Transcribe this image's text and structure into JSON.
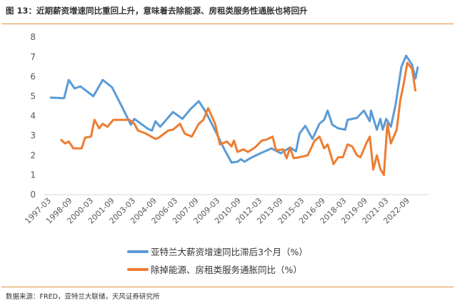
{
  "title": "图 13：近期薪资增速同比重回上升，意味着去除能源、房租类服务性通胀也将回升",
  "source": "数据来源：FRED，亚特兰大联储，天风证券研究所",
  "colors": {
    "accent": "#e8913f",
    "blue": "#5b9bd5",
    "orange": "#ed7d31"
  },
  "chart_data": {
    "type": "line",
    "title": "",
    "xlabel": "",
    "ylabel": "",
    "ylim": [
      0,
      8
    ],
    "yticks": [
      "0",
      "1",
      "2",
      "3",
      "4",
      "5",
      "6",
      "7",
      "8"
    ],
    "xticks": [
      "1997-03",
      "1998-09",
      "2000-03",
      "2001-09",
      "2003-03",
      "2004-09",
      "2006-03",
      "2007-09",
      "2009-03",
      "2010-09",
      "2012-03",
      "2013-09",
      "2015-03",
      "2016-09",
      "2018-03",
      "2019-09",
      "2021-03",
      "2022-09"
    ],
    "grid": false,
    "legend": "bottom",
    "series": [
      {
        "name": "亚特兰大薪资增速同比滞后3个月（%）",
        "color": "#5b9bd5",
        "points": [
          [
            "1997-03",
            4.93
          ],
          [
            "1998-03",
            4.9
          ],
          [
            "1998-07",
            5.83
          ],
          [
            "1998-12",
            5.4
          ],
          [
            "1999-05",
            5.5
          ],
          [
            "2000-04",
            5.0
          ],
          [
            "2000-12",
            5.83
          ],
          [
            "2001-08",
            5.45
          ],
          [
            "2002-05",
            4.4
          ],
          [
            "2002-12",
            3.55
          ],
          [
            "2003-03",
            3.85
          ],
          [
            "2004-02",
            3.37
          ],
          [
            "2004-06",
            3.25
          ],
          [
            "2004-09",
            3.73
          ],
          [
            "2005-01",
            3.45
          ],
          [
            "2005-12",
            4.2
          ],
          [
            "2006-08",
            3.85
          ],
          [
            "2007-03",
            4.35
          ],
          [
            "2007-10",
            4.75
          ],
          [
            "2008-04",
            4.2
          ],
          [
            "2008-12",
            3.26
          ],
          [
            "2009-08",
            2.28
          ],
          [
            "2010-02",
            1.63
          ],
          [
            "2010-07",
            1.67
          ],
          [
            "2010-10",
            1.8
          ],
          [
            "2011-01",
            1.67
          ],
          [
            "2011-06",
            1.85
          ],
          [
            "2011-12",
            2.03
          ],
          [
            "2012-12",
            2.35
          ],
          [
            "2013-08",
            2.1
          ],
          [
            "2014-04",
            2.4
          ],
          [
            "2014-09",
            2.2
          ],
          [
            "2014-12",
            3.1
          ],
          [
            "2015-05",
            3.5
          ],
          [
            "2015-11",
            2.83
          ],
          [
            "2016-05",
            3.6
          ],
          [
            "2016-09",
            3.8
          ],
          [
            "2016-12",
            4.27
          ],
          [
            "2017-04",
            3.55
          ],
          [
            "2017-09",
            3.37
          ],
          [
            "2018-03",
            3.3
          ],
          [
            "2018-05",
            3.8
          ],
          [
            "2019-01",
            3.9
          ],
          [
            "2019-07",
            4.27
          ],
          [
            "2019-12",
            3.73
          ],
          [
            "2020-01",
            4.27
          ],
          [
            "2020-06",
            3.3
          ],
          [
            "2020-09",
            3.85
          ],
          [
            "2020-11",
            3.3
          ],
          [
            "2021-02",
            3.85
          ],
          [
            "2021-06",
            3.45
          ],
          [
            "2021-10",
            4.57
          ],
          [
            "2022-03",
            6.5
          ],
          [
            "2022-07",
            7.06
          ],
          [
            "2022-12",
            6.6
          ],
          [
            "2023-03",
            5.9
          ],
          [
            "2023-05",
            6.5
          ]
        ]
      },
      {
        "name": "除掉能源、房租类服务通胀同比（%）",
        "color": "#ed7d31",
        "points": [
          [
            "1997-12",
            2.8
          ],
          [
            "1998-04",
            2.6
          ],
          [
            "1998-07",
            2.7
          ],
          [
            "1998-11",
            2.35
          ],
          [
            "1999-06",
            2.35
          ],
          [
            "1999-09",
            2.9
          ],
          [
            "2000-02",
            2.95
          ],
          [
            "2000-05",
            3.8
          ],
          [
            "2000-09",
            3.37
          ],
          [
            "2000-12",
            3.6
          ],
          [
            "2001-04",
            3.45
          ],
          [
            "2001-09",
            3.8
          ],
          [
            "2002-03",
            3.8
          ],
          [
            "2002-11",
            3.8
          ],
          [
            "2003-03",
            3.6
          ],
          [
            "2003-06",
            3.26
          ],
          [
            "2004-01",
            3.1
          ],
          [
            "2004-09",
            2.83
          ],
          [
            "2004-12",
            2.9
          ],
          [
            "2005-08",
            3.26
          ],
          [
            "2005-12",
            3.3
          ],
          [
            "2006-06",
            3.6
          ],
          [
            "2006-10",
            3.1
          ],
          [
            "2007-04",
            2.95
          ],
          [
            "2007-10",
            3.6
          ],
          [
            "2008-02",
            3.8
          ],
          [
            "2008-06",
            4.4
          ],
          [
            "2008-12",
            3.6
          ],
          [
            "2009-04",
            2.55
          ],
          [
            "2009-10",
            2.7
          ],
          [
            "2010-02",
            2.45
          ],
          [
            "2010-04",
            2.75
          ],
          [
            "2010-07",
            2.17
          ],
          [
            "2010-12",
            2.3
          ],
          [
            "2011-04",
            2.17
          ],
          [
            "2011-10",
            2.4
          ],
          [
            "2012-04",
            2.75
          ],
          [
            "2012-08",
            2.8
          ],
          [
            "2013-01",
            2.95
          ],
          [
            "2013-04",
            2.25
          ],
          [
            "2013-10",
            2.3
          ],
          [
            "2014-01",
            1.85
          ],
          [
            "2014-04",
            2.4
          ],
          [
            "2014-07",
            1.85
          ],
          [
            "2014-12",
            1.9
          ],
          [
            "2015-07",
            2.0
          ],
          [
            "2016-01",
            2.75
          ],
          [
            "2016-05",
            2.95
          ],
          [
            "2016-09",
            2.35
          ],
          [
            "2016-12",
            2.55
          ],
          [
            "2017-05",
            1.55
          ],
          [
            "2017-09",
            1.9
          ],
          [
            "2018-01",
            1.9
          ],
          [
            "2018-05",
            2.55
          ],
          [
            "2018-09",
            2.45
          ],
          [
            "2019-01",
            2.0
          ],
          [
            "2019-04",
            1.9
          ],
          [
            "2019-09",
            2.6
          ],
          [
            "2019-12",
            2.95
          ],
          [
            "2020-03",
            1.27
          ],
          [
            "2020-06",
            2.0
          ],
          [
            "2020-09",
            1.3
          ],
          [
            "2020-12",
            1.0
          ],
          [
            "2021-03",
            3.6
          ],
          [
            "2021-06",
            2.6
          ],
          [
            "2021-11",
            3.3
          ],
          [
            "2022-02",
            4.8
          ],
          [
            "2022-05",
            5.65
          ],
          [
            "2022-08",
            6.7
          ],
          [
            "2022-12",
            6.4
          ],
          [
            "2023-03",
            5.25
          ]
        ]
      }
    ]
  }
}
